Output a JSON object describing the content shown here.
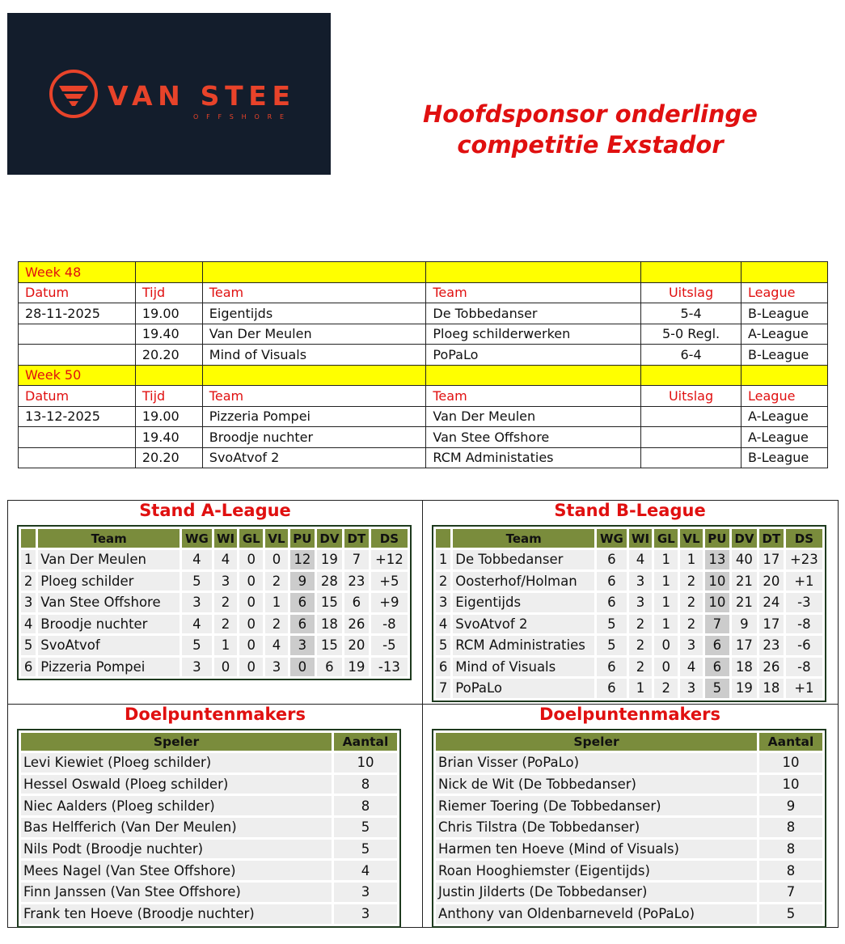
{
  "logo": {
    "brand": "VAN STEE",
    "sub": "OFFSHORE",
    "bg": "#131d2c",
    "accent": "#e8432a"
  },
  "title": {
    "line1": "Hoofdsponsor onderlinge",
    "line2": "competitie Exstador"
  },
  "schedule": {
    "headers": [
      "Datum",
      "Tijd",
      "Team",
      "Team",
      "Uitslag",
      "League"
    ],
    "weeks": [
      {
        "label": "Week 48",
        "matches": [
          [
            "28-11-2025",
            "19.00",
            "Eigentijds",
            "De Tobbedanser",
            "5-4",
            "B-League"
          ],
          [
            "",
            "19.40",
            "Van Der Meulen",
            "Ploeg schilderwerken",
            "5-0 Regl.",
            "A-League"
          ],
          [
            "",
            "20.20",
            "Mind of Visuals",
            "PoPaLo",
            "6-4",
            "B-League"
          ]
        ]
      },
      {
        "label": "Week 50",
        "matches": [
          [
            "13-12-2025",
            "19.00",
            "Pizzeria Pompei",
            "Van Der Meulen",
            "",
            "A-League"
          ],
          [
            "",
            "19.40",
            "Broodje nuchter",
            "Van Stee Offshore",
            "",
            "A-League"
          ],
          [
            "",
            "20.20",
            "SvoAtvof 2",
            "RCM Administaties",
            "",
            "B-League"
          ]
        ]
      }
    ]
  },
  "standings": {
    "columns": [
      "",
      "Team",
      "WG",
      "WI",
      "GL",
      "VL",
      "PU",
      "DV",
      "DT",
      "DS"
    ],
    "a": {
      "title": "Stand A-League",
      "rows": [
        [
          "1",
          "Van Der Meulen",
          "4",
          "4",
          "0",
          "0",
          "12",
          "19",
          "7",
          "+12"
        ],
        [
          "2",
          "Ploeg schilder",
          "5",
          "3",
          "0",
          "2",
          "9",
          "28",
          "23",
          "+5"
        ],
        [
          "3",
          "Van Stee Offshore",
          "3",
          "2",
          "0",
          "1",
          "6",
          "15",
          "6",
          "+9"
        ],
        [
          "4",
          "Broodje nuchter",
          "4",
          "2",
          "0",
          "2",
          "6",
          "18",
          "26",
          "-8"
        ],
        [
          "5",
          "SvoAtvof",
          "5",
          "1",
          "0",
          "4",
          "3",
          "15",
          "20",
          "-5"
        ],
        [
          "6",
          "Pizzeria Pompei",
          "3",
          "0",
          "0",
          "3",
          "0",
          "6",
          "19",
          "-13"
        ]
      ]
    },
    "b": {
      "title": "Stand B-League",
      "rows": [
        [
          "1",
          "De Tobbedanser",
          "6",
          "4",
          "1",
          "1",
          "13",
          "40",
          "17",
          "+23"
        ],
        [
          "2",
          "Oosterhof/Holman",
          "6",
          "3",
          "1",
          "2",
          "10",
          "21",
          "20",
          "+1"
        ],
        [
          "3",
          "Eigentijds",
          "6",
          "3",
          "1",
          "2",
          "10",
          "21",
          "24",
          "-3"
        ],
        [
          "4",
          "SvoAtvof 2",
          "5",
          "2",
          "1",
          "2",
          "7",
          "9",
          "17",
          "-8"
        ],
        [
          "5",
          "RCM Administraties",
          "5",
          "2",
          "0",
          "3",
          "6",
          "17",
          "23",
          "-6"
        ],
        [
          "6",
          "Mind of Visuals",
          "6",
          "2",
          "0",
          "4",
          "6",
          "18",
          "26",
          "-8"
        ],
        [
          "7",
          "PoPaLo",
          "6",
          "1",
          "2",
          "3",
          "5",
          "19",
          "18",
          "+1"
        ]
      ]
    }
  },
  "scorers": {
    "columns": [
      "Speler",
      "Aantal"
    ],
    "a": {
      "title": "Doelpuntenmakers",
      "rows": [
        [
          "Levi Kiewiet (Ploeg schilder)",
          "10"
        ],
        [
          "Hessel Oswald (Ploeg schilder)",
          "8"
        ],
        [
          "Niec Aalders (Ploeg schilder)",
          "8"
        ],
        [
          "Bas Helfferich (Van Der Meulen)",
          "5"
        ],
        [
          "Nils Podt (Broodje nuchter)",
          "5"
        ],
        [
          "Mees Nagel (Van Stee Offshore)",
          "4"
        ],
        [
          "Finn Janssen (Van Stee Offshore)",
          "3"
        ],
        [
          "Frank ten Hoeve (Broodje nuchter)",
          "3"
        ]
      ]
    },
    "b": {
      "title": "Doelpuntenmakers",
      "rows": [
        [
          "Brian Visser (PoPaLo)",
          "10"
        ],
        [
          "Nick de Wit (De Tobbedanser)",
          "10"
        ],
        [
          "Riemer Toering (De Tobbedanser)",
          "9"
        ],
        [
          "Chris Tilstra (De Tobbedanser)",
          "8"
        ],
        [
          "Harmen ten Hoeve (Mind of Visuals)",
          "8"
        ],
        [
          "Roan Hooghiemster (Eigentijds)",
          "8"
        ],
        [
          "Justin Jilderts (De Tobbedanser)",
          "7"
        ],
        [
          "Anthony van Oldenbarneveld (PoPaLo)",
          "5"
        ]
      ]
    }
  }
}
